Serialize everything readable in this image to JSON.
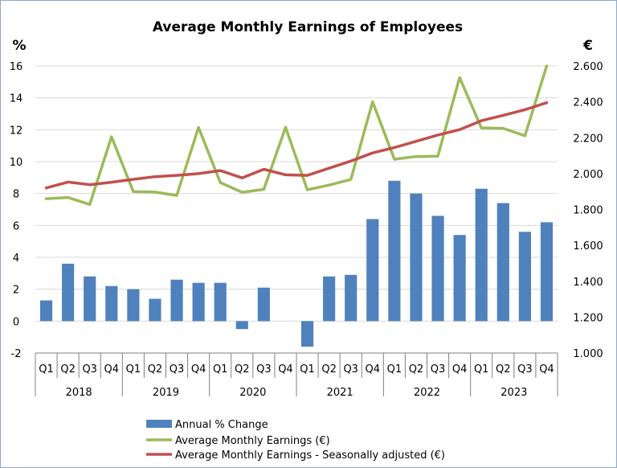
{
  "chart_data": {
    "type": "bar",
    "title": "Average Monthly Earnings of Employees",
    "left_unit": "%",
    "right_unit": "€",
    "categories": [
      "Q1",
      "Q2",
      "Q3",
      "Q4",
      "Q1",
      "Q2",
      "Q3",
      "Q4",
      "Q1",
      "Q2",
      "Q3",
      "Q4",
      "Q1",
      "Q2",
      "Q3",
      "Q4",
      "Q1",
      "Q2",
      "Q3",
      "Q4",
      "Q1",
      "Q2",
      "Q3",
      "Q4"
    ],
    "years": [
      "2018",
      "2019",
      "2020",
      "2021",
      "2022",
      "2023"
    ],
    "left_axis": {
      "min": -2,
      "max": 16,
      "ticks": [
        "-2",
        "0",
        "2",
        "4",
        "6",
        "8",
        "10",
        "12",
        "14",
        "16"
      ]
    },
    "right_axis": {
      "min": 1000,
      "max": 2600,
      "ticks": [
        "1.000",
        "1.200",
        "1.400",
        "1.600",
        "1.800",
        "2.000",
        "2.200",
        "2.400",
        "2.600"
      ]
    },
    "grid": true,
    "legend_position": "bottom",
    "series": [
      {
        "name": "Annual % Change",
        "type": "bar",
        "axis": "left",
        "color": "#4f81bd",
        "values": [
          1.3,
          3.6,
          2.8,
          2.2,
          2.0,
          1.4,
          2.6,
          2.4,
          2.4,
          -0.5,
          2.1,
          0.0,
          -1.6,
          2.8,
          2.9,
          6.4,
          8.8,
          8.0,
          6.6,
          5.4,
          8.3,
          7.4,
          5.6,
          6.2
        ]
      },
      {
        "name": "Average Monthly Earnings (€)",
        "type": "line",
        "axis": "right",
        "color": "#9bbb59",
        "values": [
          1860,
          1867,
          1828,
          2205,
          1900,
          1897,
          1878,
          2257,
          1950,
          1896,
          1912,
          2258,
          1910,
          1936,
          1967,
          2400,
          2080,
          2095,
          2097,
          2535,
          2255,
          2252,
          2211,
          2600
        ]
      },
      {
        "name": "Average Monthly Earnings - Seasonally adjusted (€)",
        "type": "line",
        "axis": "right",
        "color": "#c0504d",
        "values": [
          1920,
          1953,
          1938,
          1952,
          1968,
          1983,
          1990,
          2000,
          2017,
          1976,
          2024,
          1993,
          1990,
          2030,
          2070,
          2115,
          2145,
          2180,
          2215,
          2245,
          2295,
          2325,
          2356,
          2395
        ]
      }
    ]
  }
}
